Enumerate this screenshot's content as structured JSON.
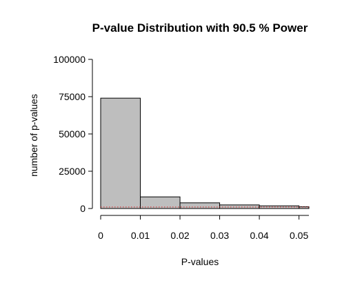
{
  "chart_data": {
    "type": "bar",
    "title": "P-value Distribution with 90.5 % Power",
    "xlabel": "P-values",
    "ylabel": "number of p-values",
    "bins": [
      {
        "start": 0.0,
        "end": 0.01,
        "value": 74000
      },
      {
        "start": 0.01,
        "end": 0.02,
        "value": 7800
      },
      {
        "start": 0.02,
        "end": 0.03,
        "value": 3800
      },
      {
        "start": 0.03,
        "end": 0.04,
        "value": 2400
      },
      {
        "start": 0.04,
        "end": 0.05,
        "value": 1800
      },
      {
        "start": 0.05,
        "end": 0.0525,
        "value": 1200
      }
    ],
    "xlim": [
      0,
      0.0525
    ],
    "ylim": [
      0,
      100000
    ],
    "x_ticks": [
      0,
      0.01,
      0.02,
      0.03,
      0.04,
      0.05
    ],
    "x_tick_labels": [
      "0",
      "0.01",
      "0.02",
      "0.03",
      "0.04",
      "0.05"
    ],
    "y_ticks": [
      0,
      25000,
      50000,
      75000,
      100000
    ],
    "y_tick_labels": [
      "0",
      "25000",
      "50000",
      "75000",
      "100000"
    ],
    "reference_line": {
      "y": 1000,
      "color": "#d62728",
      "style": "dotted"
    },
    "grid": false,
    "colors": {
      "bar_fill": "#bebebe",
      "bar_stroke": "#000000"
    }
  }
}
